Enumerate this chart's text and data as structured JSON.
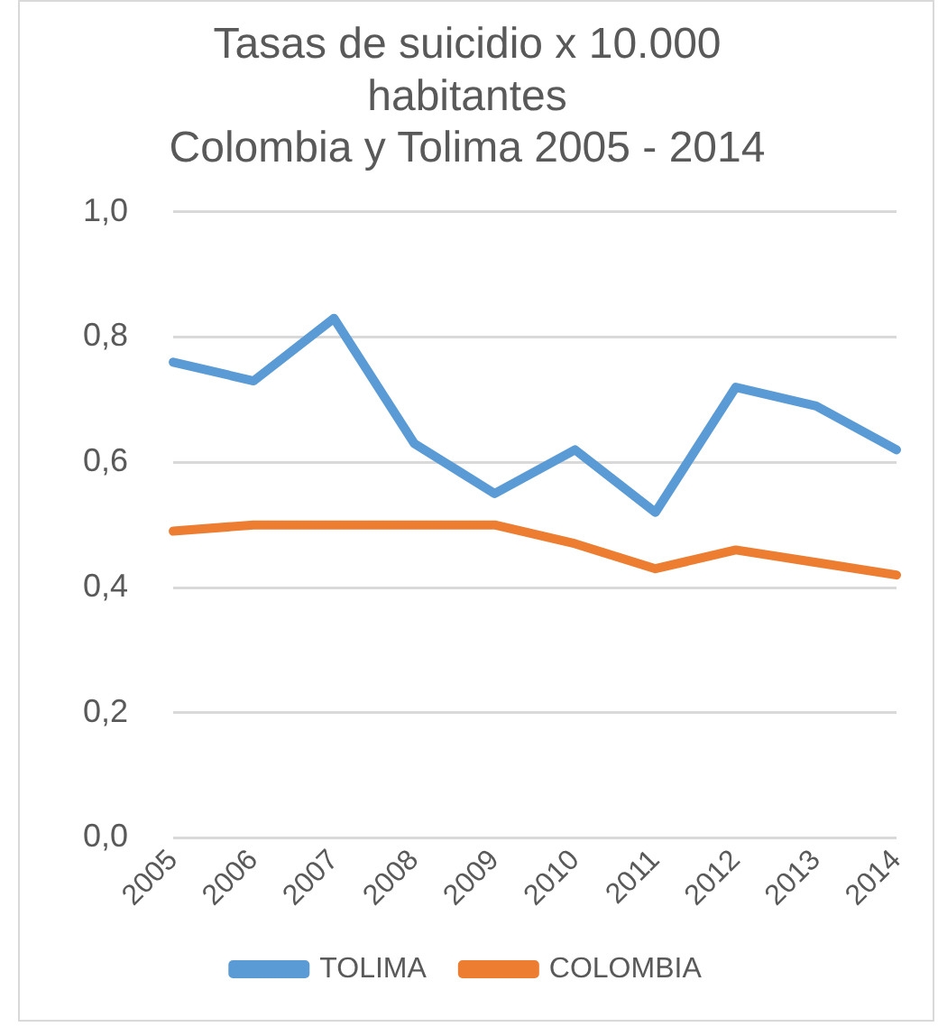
{
  "chart_data": {
    "type": "line",
    "title": [
      "Tasas de suicidio x 10.000",
      "habitantes",
      "Colombia y Tolima 2005 - 2014"
    ],
    "categories": [
      "2005",
      "2006",
      "2007",
      "2008",
      "2009",
      "2010",
      "2011",
      "2012",
      "2013",
      "2014"
    ],
    "series": [
      {
        "name": "TOLIMA",
        "color": "#5b9bd5",
        "values": [
          0.76,
          0.73,
          0.83,
          0.63,
          0.55,
          0.62,
          0.52,
          0.72,
          0.69,
          0.62
        ]
      },
      {
        "name": "COLOMBIA",
        "color": "#ed7d31",
        "values": [
          0.49,
          0.5,
          0.5,
          0.5,
          0.5,
          0.47,
          0.43,
          0.46,
          0.44,
          0.42
        ]
      }
    ],
    "ylim": [
      0,
      1
    ],
    "yticks": [
      {
        "value": 0,
        "label": "0,0"
      },
      {
        "value": 0.2,
        "label": "0,2"
      },
      {
        "value": 0.4,
        "label": "0,4"
      },
      {
        "value": 0.6,
        "label": "0,6"
      },
      {
        "value": 0.8,
        "label": "0,8"
      },
      {
        "value": 1,
        "label": "1,0"
      }
    ],
    "grid": "y",
    "legend": "bottom",
    "marker": "none",
    "line_style": "solid"
  }
}
